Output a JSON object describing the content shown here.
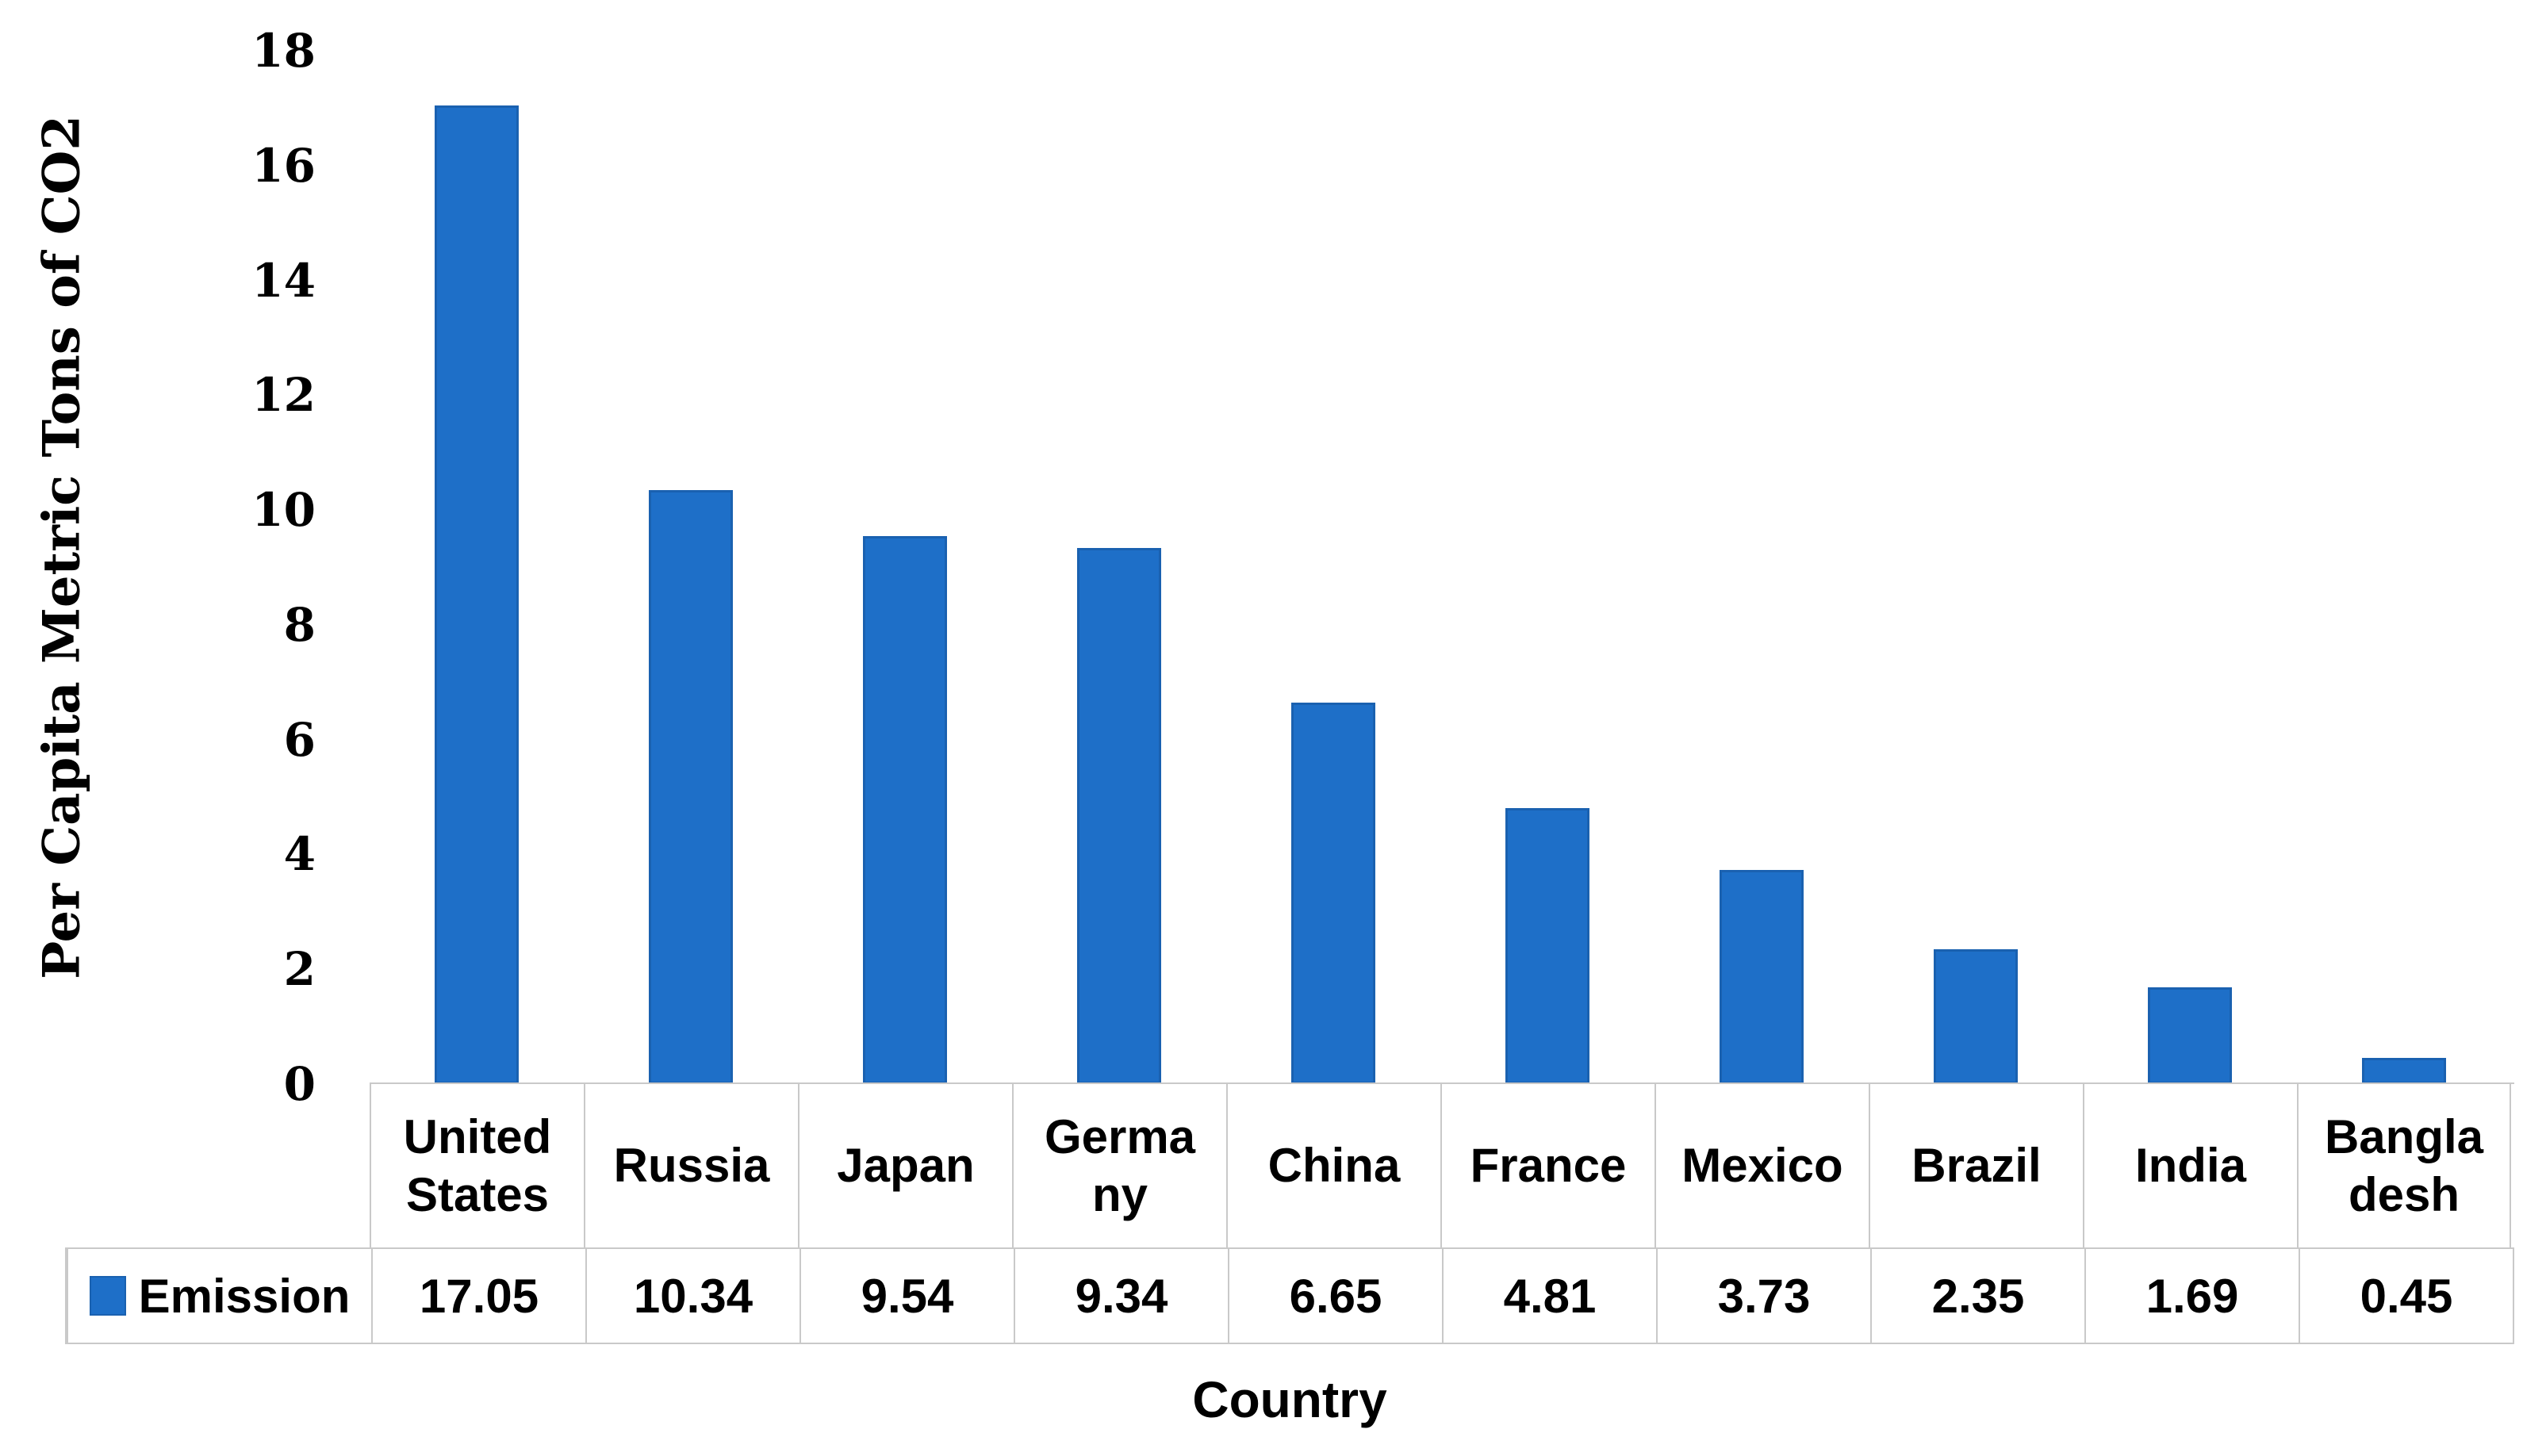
{
  "chart_data": {
    "type": "bar",
    "title": "",
    "xlabel": "Country",
    "ylabel": "Per Capita Metric Tons of CO2",
    "categories": [
      "United States",
      "Russia",
      "Japan",
      "Germany",
      "China",
      "France",
      "Mexico",
      "Brazil",
      "India",
      "Bangladesh"
    ],
    "category_display": [
      "United\nStates",
      "Russia",
      "Japan",
      "Germa\nny",
      "China",
      "France",
      "Mexico",
      "Brazil",
      "India",
      "Bangla\ndesh"
    ],
    "series": [
      {
        "name": "Emission",
        "values": [
          17.05,
          10.34,
          9.54,
          9.34,
          6.65,
          4.81,
          3.73,
          2.35,
          1.69,
          0.45
        ]
      }
    ],
    "value_labels": [
      "17.05",
      "10.34",
      "9.54",
      "9.34",
      "6.65",
      "4.81",
      "3.73",
      "2.35",
      "1.69",
      "0.45"
    ],
    "ylim": [
      0,
      18
    ],
    "yticks": [
      0,
      2,
      4,
      6,
      8,
      10,
      12,
      14,
      16,
      18
    ],
    "grid": false,
    "legend_position": "bottom-left-table",
    "colors": {
      "bar_fill": "#1e6fc8",
      "bar_edge": "#1a61b0",
      "table_border": "#c9c9c9",
      "text": "#000000"
    }
  }
}
